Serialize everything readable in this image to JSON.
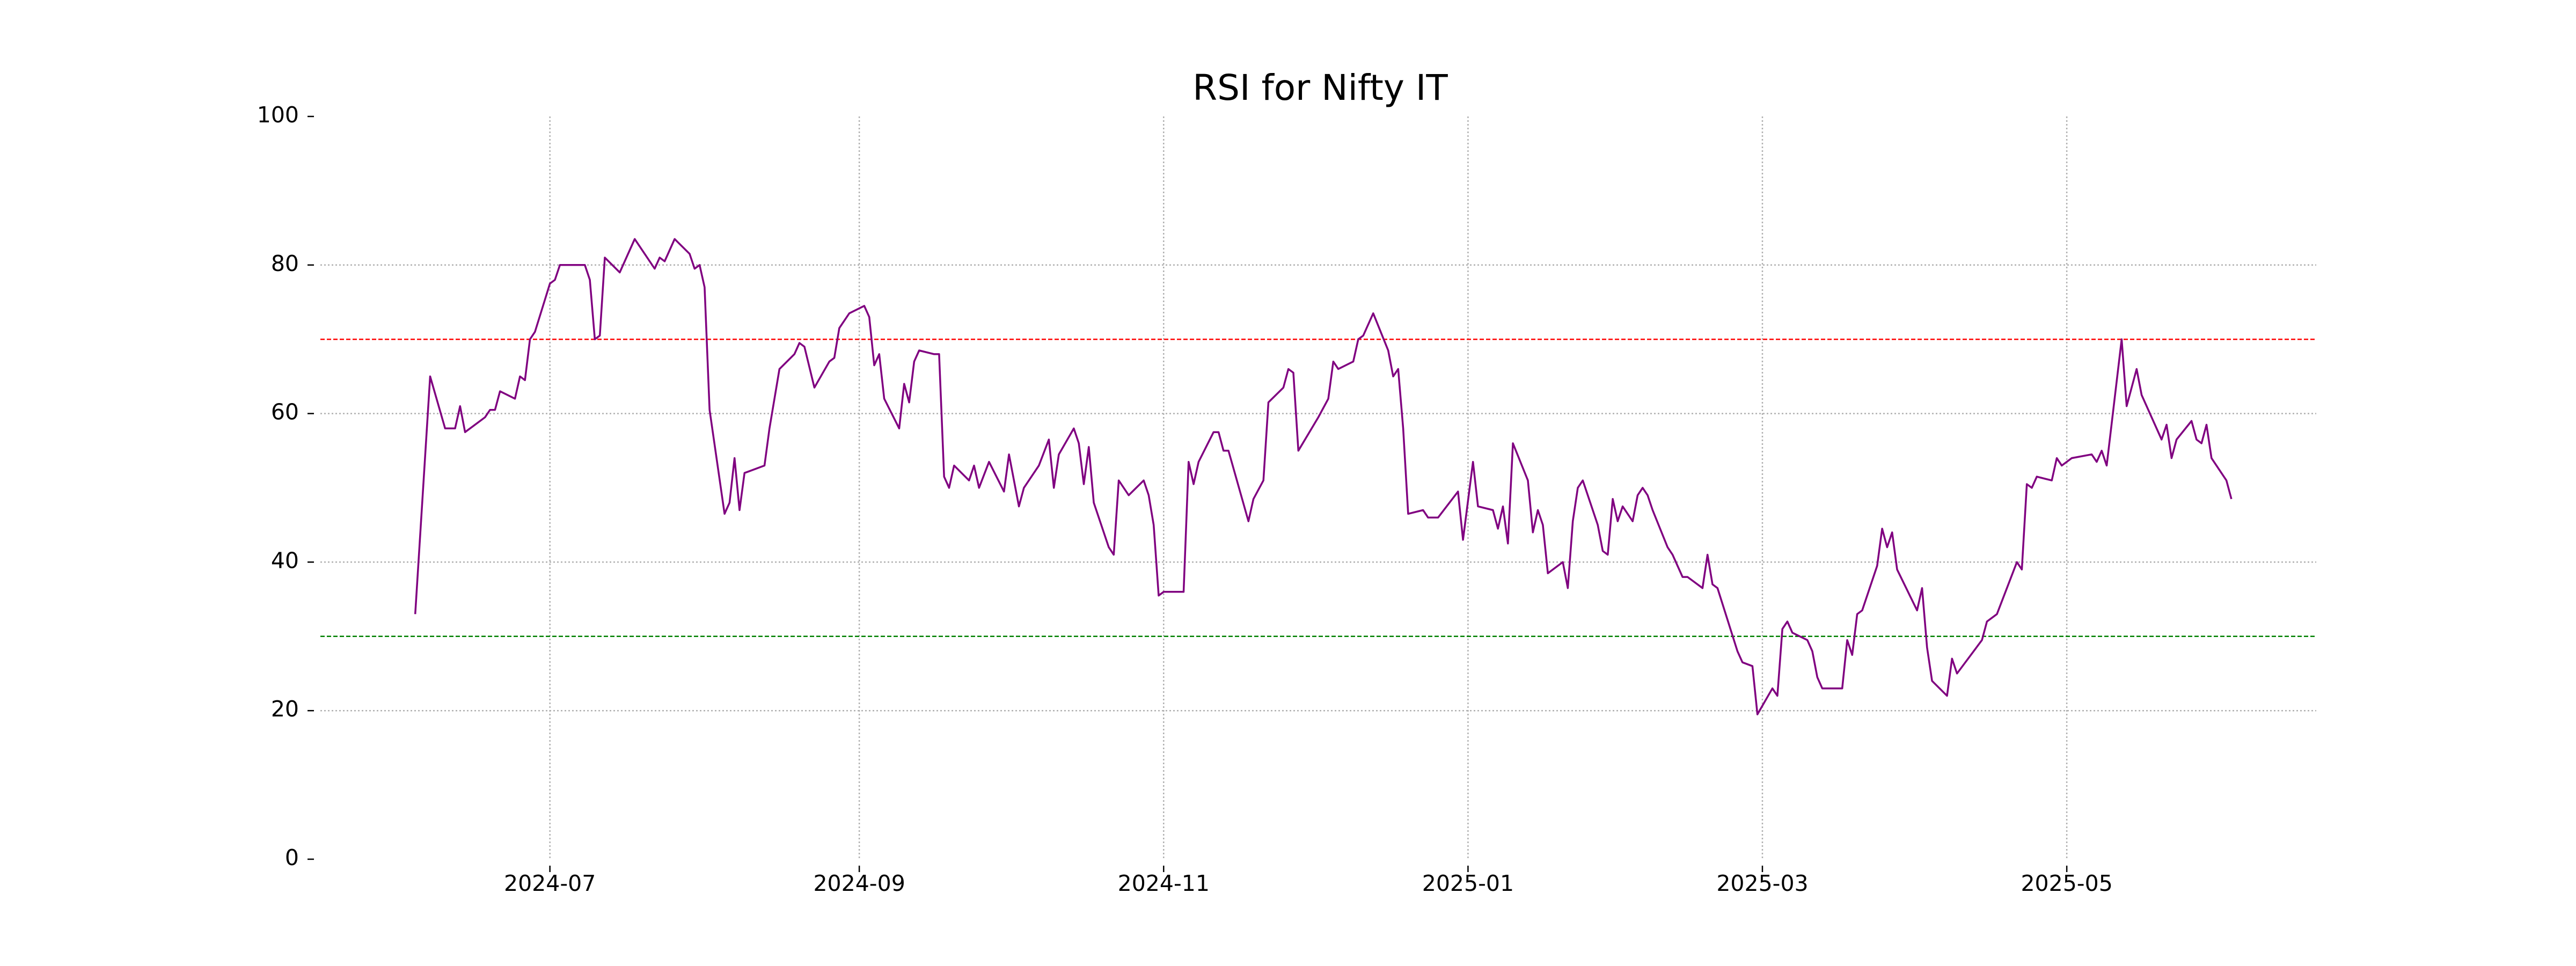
{
  "chart_data": {
    "type": "line",
    "title": "RSI for Nifty IT",
    "x": [
      "2024-06-04",
      "2024-06-07",
      "2024-06-10",
      "2024-06-12",
      "2024-06-13",
      "2024-06-14",
      "2024-06-18",
      "2024-06-19",
      "2024-06-20",
      "2024-06-21",
      "2024-06-24",
      "2024-06-25",
      "2024-06-26",
      "2024-06-27",
      "2024-06-28",
      "2024-07-01",
      "2024-07-02",
      "2024-07-03",
      "2024-07-08",
      "2024-07-09",
      "2024-07-10",
      "2024-07-11",
      "2024-07-12",
      "2024-07-15",
      "2024-07-18",
      "2024-07-22",
      "2024-07-23",
      "2024-07-24",
      "2024-07-26",
      "2024-07-29",
      "2024-07-30",
      "2024-07-31",
      "2024-08-01",
      "2024-08-02",
      "2024-08-05",
      "2024-08-06",
      "2024-08-07",
      "2024-08-08",
      "2024-08-09",
      "2024-08-13",
      "2024-08-14",
      "2024-08-16",
      "2024-08-19",
      "2024-08-20",
      "2024-08-21",
      "2024-08-23",
      "2024-08-26",
      "2024-08-27",
      "2024-08-28",
      "2024-08-30",
      "2024-09-02",
      "2024-09-03",
      "2024-09-04",
      "2024-09-05",
      "2024-09-06",
      "2024-09-09",
      "2024-09-10",
      "2024-09-11",
      "2024-09-12",
      "2024-09-13",
      "2024-09-16",
      "2024-09-17",
      "2024-09-18",
      "2024-09-19",
      "2024-09-20",
      "2024-09-23",
      "2024-09-24",
      "2024-09-25",
      "2024-09-27",
      "2024-09-30",
      "2024-10-01",
      "2024-10-03",
      "2024-10-04",
      "2024-10-07",
      "2024-10-09",
      "2024-10-10",
      "2024-10-11",
      "2024-10-14",
      "2024-10-15",
      "2024-10-16",
      "2024-10-17",
      "2024-10-18",
      "2024-10-21",
      "2024-10-22",
      "2024-10-23",
      "2024-10-25",
      "2024-10-28",
      "2024-10-29",
      "2024-10-30",
      "2024-10-31",
      "2024-11-01",
      "2024-11-05",
      "2024-11-06",
      "2024-11-07",
      "2024-11-08",
      "2024-11-11",
      "2024-11-12",
      "2024-11-13",
      "2024-11-14",
      "2024-11-18",
      "2024-11-19",
      "2024-11-21",
      "2024-11-22",
      "2024-11-25",
      "2024-11-26",
      "2024-11-27",
      "2024-11-28",
      "2024-12-02",
      "2024-12-04",
      "2024-12-05",
      "2024-12-06",
      "2024-12-09",
      "2024-12-10",
      "2024-12-11",
      "2024-12-13",
      "2024-12-16",
      "2024-12-17",
      "2024-12-18",
      "2024-12-19",
      "2024-12-20",
      "2024-12-23",
      "2024-12-24",
      "2024-12-26",
      "2024-12-30",
      "2024-12-31",
      "2025-01-02",
      "2025-01-03",
      "2025-01-06",
      "2025-01-07",
      "2025-01-08",
      "2025-01-09",
      "2025-01-10",
      "2025-01-13",
      "2025-01-14",
      "2025-01-15",
      "2025-01-16",
      "2025-01-17",
      "2025-01-20",
      "2025-01-21",
      "2025-01-22",
      "2025-01-23",
      "2025-01-24",
      "2025-01-27",
      "2025-01-28",
      "2025-01-29",
      "2025-01-30",
      "2025-01-31",
      "2025-02-01",
      "2025-02-03",
      "2025-02-04",
      "2025-02-05",
      "2025-02-06",
      "2025-02-07",
      "2025-02-10",
      "2025-02-11",
      "2025-02-13",
      "2025-02-14",
      "2025-02-17",
      "2025-02-18",
      "2025-02-19",
      "2025-02-20",
      "2025-02-24",
      "2025-02-25",
      "2025-02-27",
      "2025-02-28",
      "2025-03-03",
      "2025-03-04",
      "2025-03-05",
      "2025-03-06",
      "2025-03-07",
      "2025-03-10",
      "2025-03-11",
      "2025-03-12",
      "2025-03-13",
      "2025-03-17",
      "2025-03-18",
      "2025-03-19",
      "2025-03-20",
      "2025-03-21",
      "2025-03-24",
      "2025-03-25",
      "2025-03-26",
      "2025-03-27",
      "2025-03-28",
      "2025-04-01",
      "2025-04-02",
      "2025-04-03",
      "2025-04-04",
      "2025-04-07",
      "2025-04-08",
      "2025-04-09",
      "2025-04-14",
      "2025-04-15",
      "2025-04-16",
      "2025-04-17",
      "2025-04-21",
      "2025-04-22",
      "2025-04-23",
      "2025-04-24",
      "2025-04-25",
      "2025-04-28",
      "2025-04-29",
      "2025-04-30",
      "2025-05-02",
      "2025-05-06",
      "2025-05-07",
      "2025-05-08",
      "2025-05-09",
      "2025-05-12",
      "2025-05-13",
      "2025-05-15",
      "2025-05-16",
      "2025-05-20",
      "2025-05-21",
      "2025-05-22",
      "2025-05-23",
      "2025-05-26",
      "2025-05-27",
      "2025-05-28",
      "2025-05-29",
      "2025-05-30",
      "2025-06-02",
      "2025-06-03"
    ],
    "series": [
      {
        "color": "#800080",
        "values": [
          33,
          65,
          58,
          58,
          61,
          57.5,
          59.5,
          60.5,
          60.5,
          63,
          62,
          65,
          64.5,
          70,
          71,
          77.5,
          78,
          80,
          80,
          78,
          70,
          70.5,
          81,
          79,
          83.5,
          79.5,
          81,
          80.5,
          83.5,
          81.5,
          79.5,
          80,
          77,
          60.5,
          46.5,
          48,
          54,
          47,
          52,
          53,
          58,
          66,
          68,
          69.5,
          69,
          63.5,
          67,
          67.5,
          71.5,
          73.5,
          74.5,
          73,
          66.5,
          68,
          62,
          58,
          64,
          61.5,
          67,
          68.5,
          68,
          68,
          51.5,
          50,
          53,
          51,
          53,
          50,
          53.5,
          49.5,
          54.5,
          47.5,
          50,
          53,
          56.5,
          50,
          54.5,
          58,
          56,
          50.5,
          55.5,
          48,
          42,
          41,
          51,
          49,
          51,
          49,
          45,
          35.5,
          36,
          36,
          53.5,
          50.5,
          53.5,
          57.5,
          57.5,
          55,
          55,
          45.5,
          48.5,
          51,
          61.5,
          63.5,
          66,
          65.5,
          55,
          59.5,
          62,
          67,
          66,
          67,
          70,
          70.5,
          73.5,
          68.5,
          65,
          66,
          58,
          46.5,
          47,
          46,
          46,
          49.5,
          43,
          53.5,
          47.5,
          47,
          44.5,
          47.5,
          42.5,
          56,
          51,
          44,
          47,
          45,
          38.5,
          40,
          36.5,
          45.5,
          50,
          51,
          45,
          41.5,
          41,
          48.5,
          45.5,
          47.5,
          45.5,
          49,
          50,
          49,
          47,
          42,
          41,
          38,
          38,
          36.5,
          41,
          37,
          36.5,
          28,
          26.5,
          26,
          19.5,
          23,
          22,
          31,
          32,
          30.5,
          29.5,
          28,
          24.5,
          23,
          23,
          29.5,
          27.5,
          33,
          33.5,
          39.5,
          44.5,
          42,
          44,
          39,
          33.5,
          36.5,
          28.5,
          24,
          22,
          27,
          25,
          29.5,
          32,
          32.5,
          33,
          40,
          39,
          50.5,
          50,
          51.5,
          51,
          54,
          53,
          54,
          54.5,
          53.5,
          55,
          53,
          70,
          61,
          66,
          62.5,
          56.5,
          58.5,
          54,
          56.5,
          59,
          56.5,
          56,
          58.5,
          54,
          51,
          48.5
        ]
      }
    ],
    "xlim": [
      "2024-05-16",
      "2025-06-20"
    ],
    "xticks": [
      "2024-07",
      "2024-09",
      "2024-11",
      "2025-01",
      "2025-03",
      "2025-05"
    ],
    "ylim": [
      0,
      100
    ],
    "yticks": [
      0,
      20,
      40,
      60,
      80,
      100
    ],
    "grid": true,
    "reference_lines": [
      {
        "value": 70,
        "color": "red"
      },
      {
        "value": 30,
        "color": "green"
      }
    ]
  }
}
